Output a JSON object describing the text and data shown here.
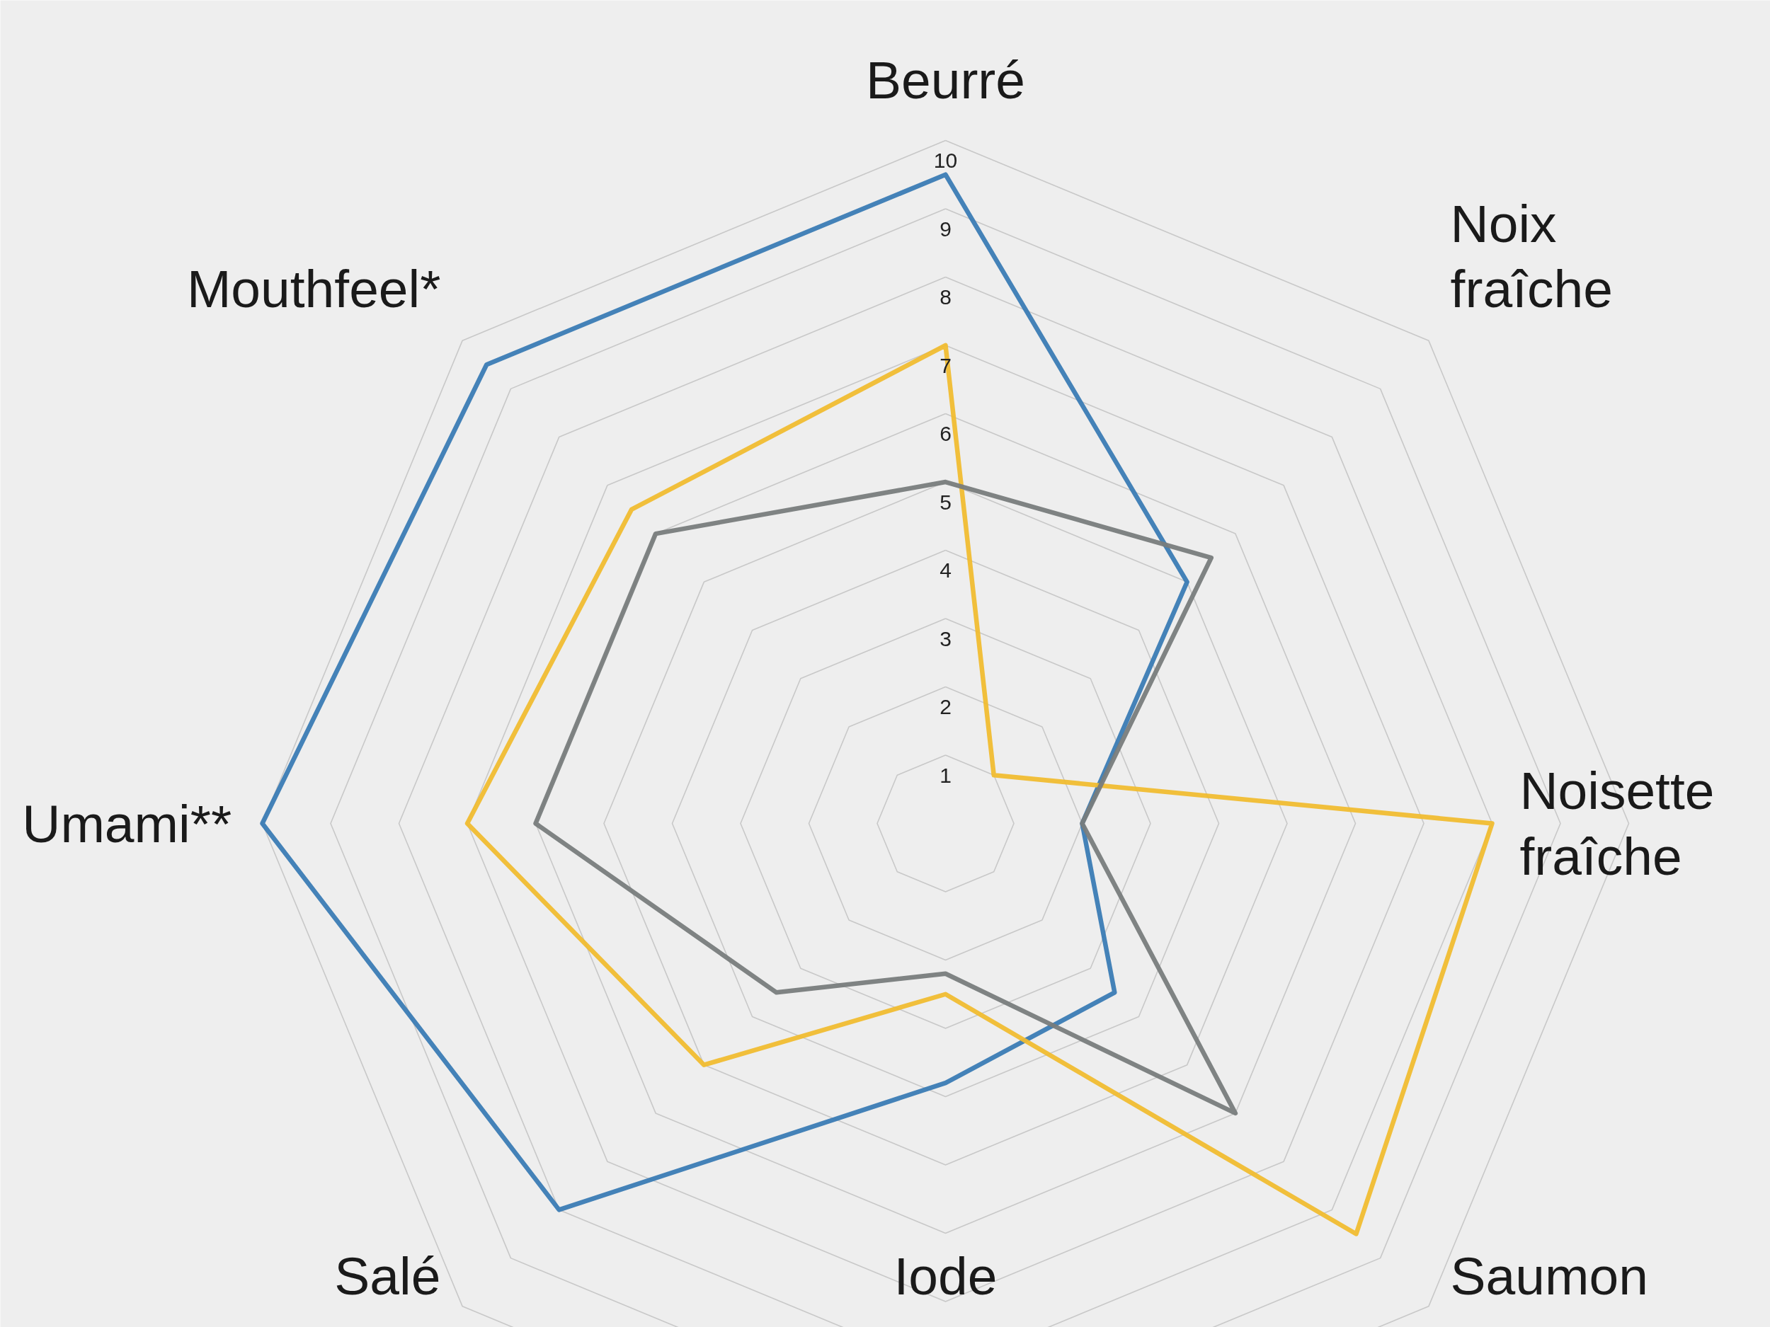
{
  "chart_data": {
    "type": "radar",
    "categories": [
      "Beurré",
      "Noix fraîche",
      "Noisette fraîche",
      "Saumon",
      "Iode",
      "Salé",
      "Umami**",
      "Mouthfeel*"
    ],
    "ylim": [
      0,
      10
    ],
    "yticks": [
      1,
      2,
      3,
      4,
      5,
      6,
      7,
      8,
      9,
      10
    ],
    "grid": true,
    "line_style": "solid",
    "series": [
      {
        "color": "#3a7bb4",
        "values": [
          9.5,
          5,
          2,
          3.5,
          3.8,
          8,
          10,
          9.5
        ]
      },
      {
        "color": "#f0bc30",
        "values": [
          7,
          1,
          8,
          8.5,
          2.5,
          5,
          7,
          6.5
        ]
      },
      {
        "color": "#787c7c",
        "values": [
          5,
          5.5,
          2,
          6,
          2.2,
          3.5,
          6,
          6
        ]
      }
    ]
  }
}
